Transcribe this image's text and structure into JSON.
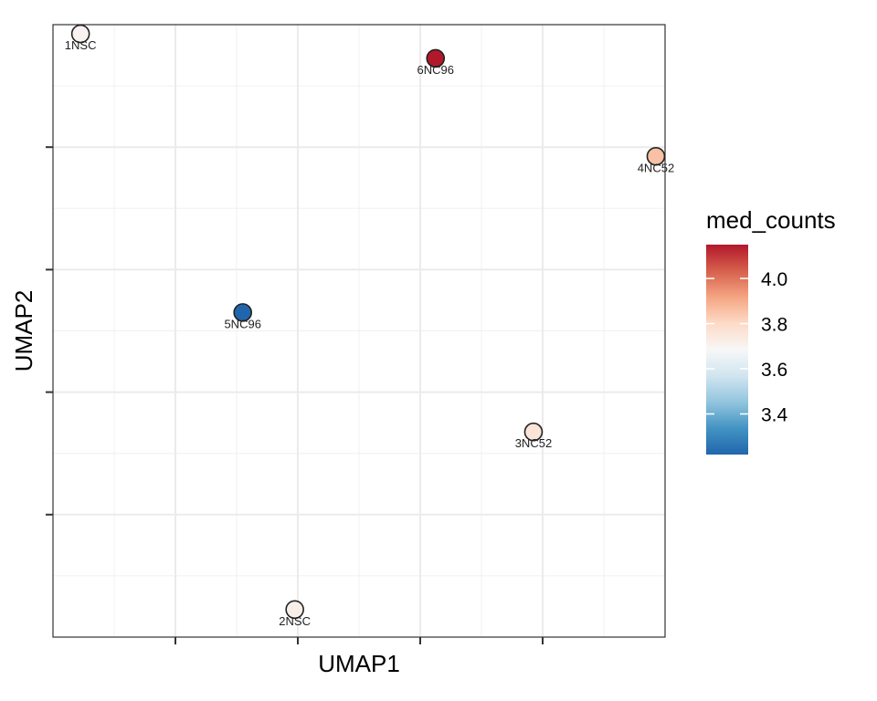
{
  "chart_data": {
    "type": "scatter",
    "title": "",
    "xlabel": "UMAP1",
    "ylabel": "UMAP2",
    "xlim": [
      0,
      10
    ],
    "ylim": [
      0,
      10
    ],
    "x_ticks": [
      2,
      4,
      6,
      8
    ],
    "y_ticks": [
      2,
      4,
      6,
      8
    ],
    "tick_labels_shown": false,
    "grid": true,
    "legend": {
      "title": "med_counts",
      "type": "colorbar",
      "placement": "right",
      "range": [
        3.22,
        4.15
      ],
      "ticks": [
        3.4,
        3.6,
        3.8,
        4.0
      ],
      "tick_labels": [
        "3.4",
        "3.6",
        "3.8",
        "4.0"
      ],
      "palette": [
        "#2166ac",
        "#4393c3",
        "#92c5de",
        "#d1e5f0",
        "#f7f7f7",
        "#fddbc7",
        "#f4a582",
        "#d6604d",
        "#b2182b"
      ]
    },
    "points": [
      {
        "label": "1NSC",
        "x": 0.45,
        "y": 9.85,
        "value": 3.7
      },
      {
        "label": "6NC96",
        "x": 6.25,
        "y": 9.45,
        "value": 4.15
      },
      {
        "label": "4NC52",
        "x": 9.85,
        "y": 7.85,
        "value": 3.86
      },
      {
        "label": "5NC96",
        "x": 3.1,
        "y": 5.3,
        "value": 3.22
      },
      {
        "label": "3NC52",
        "x": 7.85,
        "y": 3.35,
        "value": 3.76
      },
      {
        "label": "2NSC",
        "x": 3.95,
        "y": 0.45,
        "value": 3.72
      }
    ]
  }
}
